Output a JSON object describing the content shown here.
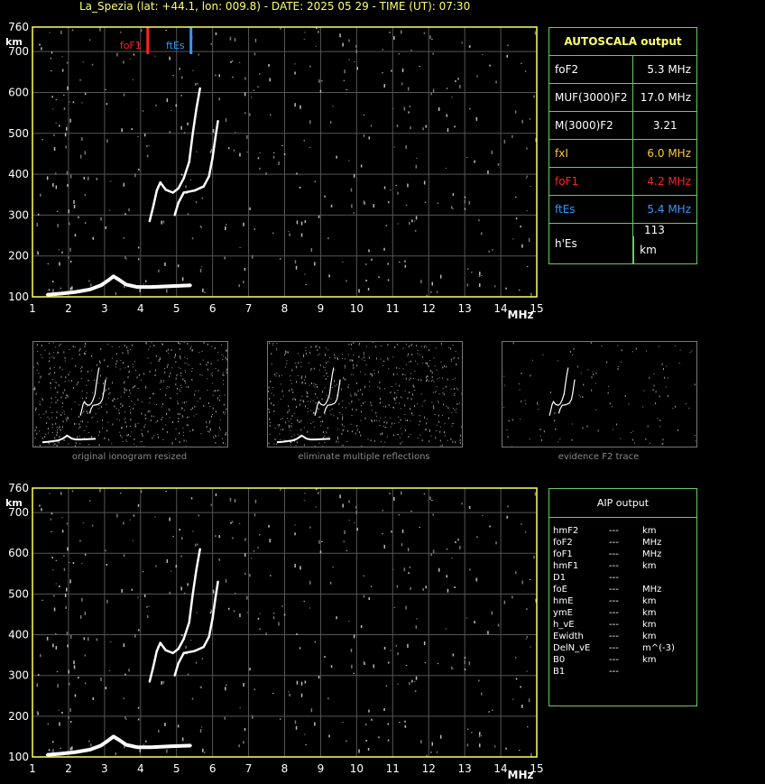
{
  "title": "La_Spezia (lat: +44.1, lon: 009.8) - DATE: 2025 05 29 - TIME (UT): 07:30",
  "colors": {
    "axis": "#ffff66",
    "grid": "#555555",
    "trace": "#ffffff",
    "foF1_marker": "#ff2222",
    "ftEs_marker": "#3399ff",
    "panel_border": "#66cc66",
    "fxI_color": "#ffcc33"
  },
  "chart_data": [
    {
      "type": "scatter",
      "name": "main-ionogram",
      "title": "",
      "xlabel": "MHz",
      "ylabel": "km",
      "xlim": [
        1,
        15
      ],
      "ylim": [
        100,
        760
      ],
      "x_ticks": [
        1,
        2,
        3,
        4,
        5,
        6,
        7,
        8,
        9,
        10,
        11,
        12,
        13,
        14,
        15
      ],
      "y_ticks": [
        100,
        200,
        300,
        400,
        500,
        600,
        700,
        760
      ],
      "grid": true,
      "markers": [
        {
          "label": "foF1",
          "x": 4.2,
          "color": "#ff2222"
        },
        {
          "label": "ftEs",
          "x": 5.4,
          "color": "#3399ff"
        }
      ],
      "traces": [
        {
          "name": "Es",
          "points": [
            [
              1.4,
              105
            ],
            [
              1.8,
              108
            ],
            [
              2.2,
              112
            ],
            [
              2.6,
              118
            ],
            [
              2.9,
              128
            ],
            [
              3.1,
              140
            ],
            [
              3.25,
              150
            ],
            [
              3.4,
              142
            ],
            [
              3.6,
              130
            ],
            [
              3.9,
              124
            ],
            [
              4.3,
              124
            ],
            [
              4.8,
              126
            ],
            [
              5.4,
              128
            ]
          ]
        },
        {
          "name": "O-trace",
          "points": [
            [
              4.25,
              285
            ],
            [
              4.35,
              320
            ],
            [
              4.45,
              360
            ],
            [
              4.55,
              380
            ],
            [
              4.7,
              362
            ],
            [
              4.9,
              355
            ],
            [
              5.05,
              365
            ],
            [
              5.2,
              390
            ],
            [
              5.35,
              430
            ],
            [
              5.45,
              500
            ],
            [
              5.55,
              560
            ],
            [
              5.65,
              610
            ]
          ]
        },
        {
          "name": "X-trace",
          "points": [
            [
              4.95,
              300
            ],
            [
              5.05,
              330
            ],
            [
              5.2,
              355
            ],
            [
              5.5,
              360
            ],
            [
              5.75,
              370
            ],
            [
              5.9,
              395
            ],
            [
              6.0,
              440
            ],
            [
              6.08,
              490
            ],
            [
              6.15,
              530
            ]
          ]
        }
      ]
    },
    {
      "type": "scatter",
      "name": "aip-ionogram",
      "title": "",
      "xlabel": "MHz",
      "ylabel": "km",
      "xlim": [
        1,
        15
      ],
      "ylim": [
        100,
        760
      ],
      "x_ticks": [
        1,
        2,
        3,
        4,
        5,
        6,
        7,
        8,
        9,
        10,
        11,
        12,
        13,
        14,
        15
      ],
      "y_ticks": [
        100,
        200,
        300,
        400,
        500,
        600,
        700,
        760
      ],
      "grid": true,
      "traces": [
        {
          "name": "Es",
          "points": [
            [
              1.4,
              105
            ],
            [
              1.8,
              108
            ],
            [
              2.2,
              112
            ],
            [
              2.6,
              118
            ],
            [
              2.9,
              128
            ],
            [
              3.1,
              140
            ],
            [
              3.25,
              150
            ],
            [
              3.4,
              142
            ],
            [
              3.6,
              130
            ],
            [
              3.9,
              124
            ],
            [
              4.3,
              124
            ],
            [
              4.8,
              126
            ],
            [
              5.4,
              128
            ]
          ]
        },
        {
          "name": "O-trace",
          "points": [
            [
              4.25,
              285
            ],
            [
              4.35,
              320
            ],
            [
              4.45,
              360
            ],
            [
              4.55,
              380
            ],
            [
              4.7,
              362
            ],
            [
              4.9,
              355
            ],
            [
              5.05,
              365
            ],
            [
              5.2,
              390
            ],
            [
              5.35,
              430
            ],
            [
              5.45,
              500
            ],
            [
              5.55,
              560
            ],
            [
              5.65,
              610
            ]
          ]
        },
        {
          "name": "X-trace",
          "points": [
            [
              4.95,
              300
            ],
            [
              5.05,
              330
            ],
            [
              5.2,
              355
            ],
            [
              5.5,
              360
            ],
            [
              5.75,
              370
            ],
            [
              5.9,
              395
            ],
            [
              6.0,
              440
            ],
            [
              6.08,
              490
            ],
            [
              6.15,
              530
            ]
          ]
        }
      ]
    }
  ],
  "autoscala": {
    "header": "AUTOSCALA output",
    "rows": [
      {
        "label": "foF2",
        "value": "5.3 MHz",
        "color": "#ffffff"
      },
      {
        "label": "MUF(3000)F2",
        "value": "17.0 MHz",
        "color": "#ffffff"
      },
      {
        "label": "M(3000)F2",
        "value": "3.21",
        "color": "#ffffff"
      },
      {
        "label": "fxI",
        "value": "6.0 MHz",
        "color": "#ffcc33"
      },
      {
        "label": "foF1",
        "value": "4.2 MHz",
        "color": "#ff2222"
      },
      {
        "label": "ftEs",
        "value": "5.4 MHz",
        "color": "#3399ff"
      },
      {
        "label": "h'Es",
        "value": "113",
        "unit": "km",
        "color": "#ffffff"
      }
    ]
  },
  "aip": {
    "header": "AIP output",
    "rows": [
      {
        "label": "hmF2",
        "value": "---",
        "unit": "km"
      },
      {
        "label": "foF2",
        "value": "---",
        "unit": "MHz"
      },
      {
        "label": "foF1",
        "value": "---",
        "unit": "MHz"
      },
      {
        "label": "hmF1",
        "value": "---",
        "unit": "km"
      },
      {
        "label": "D1",
        "value": "---",
        "unit": ""
      },
      {
        "label": "foE",
        "value": "---",
        "unit": "MHz"
      },
      {
        "label": "hmE",
        "value": "---",
        "unit": "km"
      },
      {
        "label": "ymE",
        "value": "---",
        "unit": "km"
      },
      {
        "label": "h_vE",
        "value": "---",
        "unit": "km"
      },
      {
        "label": "Ewidth",
        "value": "---",
        "unit": "km"
      },
      {
        "label": "DelN_vE",
        "value": "---",
        "unit": "m^(-3)"
      },
      {
        "label": "B0",
        "value": "---",
        "unit": "km"
      },
      {
        "label": "B1",
        "value": "---",
        "unit": ""
      }
    ]
  },
  "thumbnails": [
    {
      "caption": "original ionogram resized"
    },
    {
      "caption": "eliminate multiple reflections"
    },
    {
      "caption": "evidence F2 trace"
    }
  ]
}
